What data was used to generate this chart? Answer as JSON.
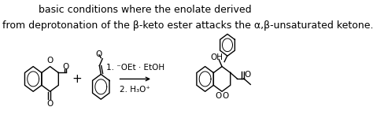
{
  "background_color": "#ffffff",
  "text_top_right": "basic conditions where the enolate derived",
  "text_top_left": "from deprotonation of the β-keto ester attacks the α,β-unsaturated ketone.",
  "reagents_line1": "1. ⁻OEt · EtOH",
  "reagents_line2": "2. H₃O⁺",
  "plus_sign": "+",
  "font_size_text": 9,
  "font_size_reagents": 8
}
